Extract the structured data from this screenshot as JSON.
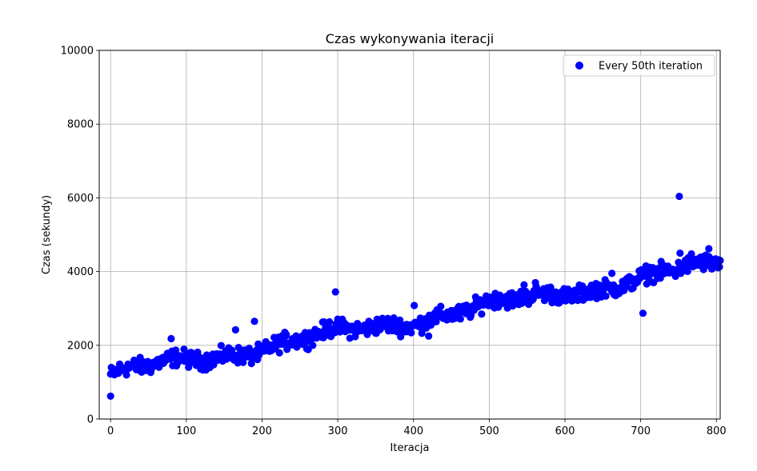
{
  "chart_data": {
    "type": "scatter",
    "title": "Czas wykonywania iteracji",
    "xlabel": "Iteracja",
    "ylabel": "Czas (sekundy)",
    "xlim": [
      -15,
      805
    ],
    "ylim": [
      0,
      10000
    ],
    "xticks": [
      0,
      100,
      200,
      300,
      400,
      500,
      600,
      700,
      800
    ],
    "yticks": [
      0,
      2000,
      4000,
      6000,
      8000,
      10000
    ],
    "grid": true,
    "legend_position": "top-right",
    "series": [
      {
        "name": "Every 50th iteration",
        "color": "#0000ff",
        "trend": {
          "x_start": 0,
          "x_end": 805,
          "x_step": 1,
          "y_start": 1200,
          "y_end": 4200,
          "noise": 110
        },
        "outliers": [
          {
            "x": 0,
            "y": 620
          },
          {
            "x": 190,
            "y": 2650
          },
          {
            "x": 297,
            "y": 3450
          },
          {
            "x": 703,
            "y": 2870
          },
          {
            "x": 706,
            "y": 4080
          },
          {
            "x": 751,
            "y": 6040
          },
          {
            "x": 752,
            "y": 4500
          },
          {
            "x": 767,
            "y": 4480
          },
          {
            "x": 790,
            "y": 4620
          },
          {
            "x": 546,
            "y": 3640
          },
          {
            "x": 561,
            "y": 3700
          },
          {
            "x": 514,
            "y": 3360
          },
          {
            "x": 662,
            "y": 3950
          },
          {
            "x": 401,
            "y": 3080
          },
          {
            "x": 420,
            "y": 2250
          },
          {
            "x": 80,
            "y": 2180
          },
          {
            "x": 165,
            "y": 2420
          },
          {
            "x": 580,
            "y": 3510
          }
        ]
      }
    ]
  }
}
